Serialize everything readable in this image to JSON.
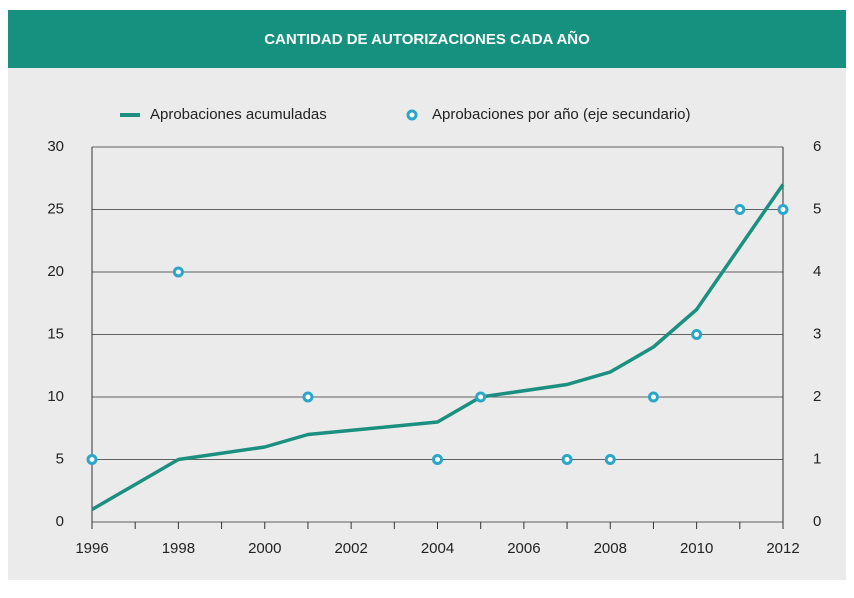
{
  "chart_data": {
    "type": "line",
    "title": "CANTIDAD DE AUTORIZACIONES CADA AÑO",
    "xlim": [
      1996,
      2012
    ],
    "xticks": [
      1996,
      1998,
      2000,
      2002,
      2004,
      2006,
      2008,
      2010,
      2012
    ],
    "ylim": [
      0,
      30
    ],
    "yticks": [
      0,
      5,
      10,
      15,
      20,
      25,
      30
    ],
    "y2lim": [
      0,
      6
    ],
    "y2ticks": [
      0,
      1,
      2,
      3,
      4,
      5,
      6
    ],
    "grid": true,
    "legend": "top",
    "series": [
      {
        "name": "Aprobaciones acumuladas",
        "type": "line",
        "color": "#1b8f80",
        "x": [
          1996,
          1998,
          2000,
          2001,
          2004,
          2005,
          2007,
          2008,
          2009,
          2010,
          2011,
          2012
        ],
        "values": [
          1,
          5,
          6,
          7,
          8,
          10,
          11,
          12,
          14,
          17,
          22,
          27
        ]
      },
      {
        "name": "Aprobaciones por año (eje secundario)",
        "type": "scatter",
        "color": "#29a6c8",
        "axis": "y2",
        "x": [
          1996,
          1998,
          2001,
          2004,
          2005,
          2007,
          2008,
          2009,
          2010,
          2011,
          2012
        ],
        "values": [
          1,
          4,
          2,
          1,
          2,
          1,
          1,
          2,
          3,
          5,
          5
        ]
      }
    ]
  }
}
